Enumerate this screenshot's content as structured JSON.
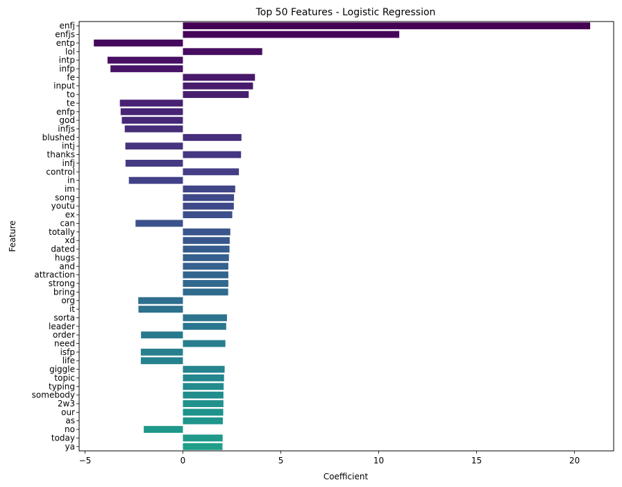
{
  "chart_data": {
    "type": "bar",
    "orientation": "horizontal",
    "title": "Top 50 Features - Logistic Regression",
    "xlabel": "Coefficient",
    "ylabel": "Feature",
    "xlim": [
      -5.3,
      22
    ],
    "xticks": [
      -5,
      0,
      5,
      10,
      15,
      20
    ],
    "xtick_labels": [
      "−5",
      "0",
      "5",
      "10",
      "15",
      "20"
    ],
    "grid": false,
    "colormap": "viridis",
    "categories": [
      "enfj",
      "enfjs",
      "entp",
      "lol",
      "intp",
      "infp",
      "fe",
      "input",
      "to",
      "te",
      "enfp",
      "god",
      "infjs",
      "blushed",
      "intj",
      "thanks",
      "infj",
      "control",
      "in",
      "im",
      "song",
      "youtu",
      "ex",
      "can",
      "totally",
      "xd",
      "dated",
      "hugs",
      "and",
      "attraction",
      "strong",
      "bring",
      "org",
      "it",
      "sorta",
      "leader",
      "order",
      "need",
      "isfp",
      "life",
      "giggle",
      "topic",
      "typing",
      "somebody",
      "2w3",
      "our",
      "as",
      "no",
      "today",
      "ya"
    ],
    "values": [
      20.8,
      11.05,
      -4.55,
      4.05,
      -3.85,
      -3.7,
      3.68,
      3.58,
      3.36,
      -3.22,
      -3.18,
      -3.12,
      -2.97,
      2.99,
      -2.94,
      2.97,
      -2.93,
      2.86,
      -2.76,
      2.67,
      2.61,
      2.6,
      2.52,
      -2.42,
      2.42,
      2.39,
      2.38,
      2.35,
      2.32,
      2.32,
      2.32,
      2.31,
      -2.28,
      -2.27,
      2.25,
      2.21,
      -2.14,
      2.17,
      -2.15,
      -2.15,
      2.13,
      2.1,
      2.08,
      2.07,
      2.07,
      2.06,
      2.04,
      -2.0,
      2.03,
      2.02
    ],
    "colors": [
      "#440154",
      "#450559",
      "#46085c",
      "#470d60",
      "#471063",
      "#481467",
      "#48186a",
      "#481b6d",
      "#481f70",
      "#482173",
      "#482475",
      "#472878",
      "#472c7a",
      "#472f7d",
      "#46327e",
      "#453781",
      "#443a83",
      "#433e85",
      "#424086",
      "#404588",
      "#3f4889",
      "#3e4989",
      "#3c4f8a",
      "#3b528b",
      "#39558c",
      "#38588c",
      "#365c8d",
      "#355f8d",
      "#34618d",
      "#32658e",
      "#31688e",
      "#2f6b8e",
      "#2e6e8e",
      "#2d718e",
      "#2c738e",
      "#2a768e",
      "#29798e",
      "#287d8e",
      "#277f8e",
      "#26828e",
      "#25848e",
      "#24878e",
      "#238a8d",
      "#228d8d",
      "#21918c",
      "#20928c",
      "#1f958b",
      "#1f988b",
      "#1f9a8a",
      "#1f9e89"
    ]
  }
}
